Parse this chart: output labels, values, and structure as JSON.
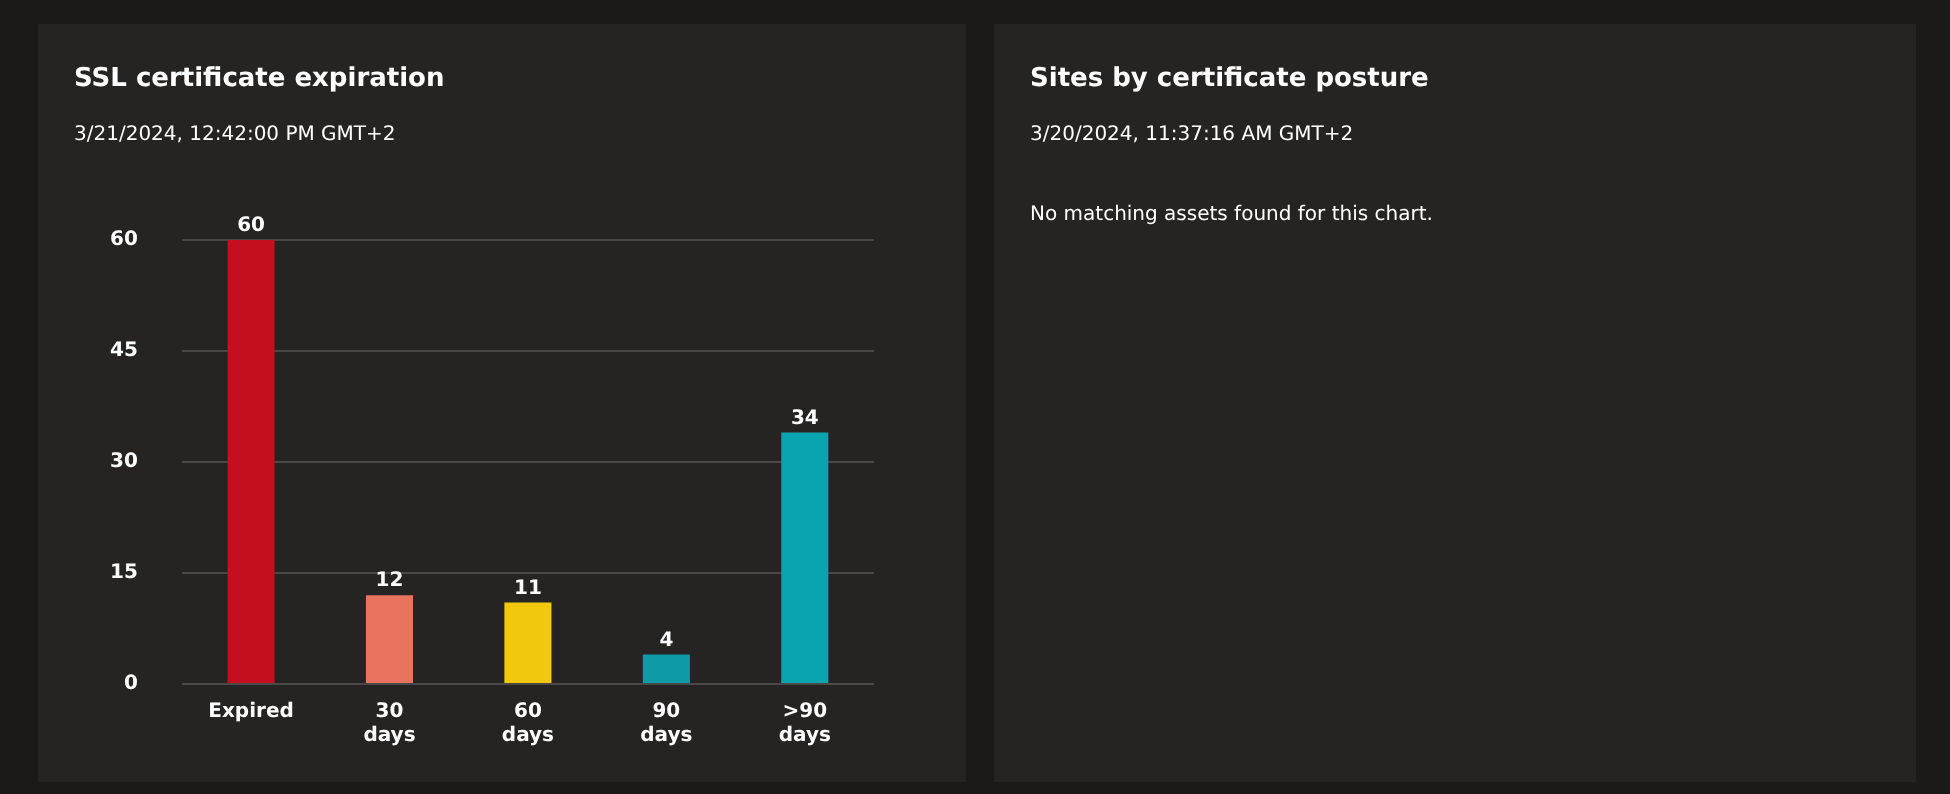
{
  "chart_data": [
    {
      "type": "bar",
      "title": "SSL certificate expiration",
      "subtitle": "3/21/2024, 12:42:00 PM GMT+2",
      "categories": [
        "Expired",
        "30 days",
        "60 days",
        "90 days",
        ">90 days"
      ],
      "values": [
        60,
        12,
        11,
        4,
        34
      ],
      "colors": [
        "#c50f1f",
        "#e8735f",
        "#f2c80f",
        "#0e9aa7",
        "#0aa3b0"
      ],
      "ylim": [
        0,
        60
      ],
      "yticks": [
        0,
        15,
        30,
        45,
        60
      ],
      "grid": "y",
      "data_labels": true,
      "legend": false
    },
    {
      "type": "other",
      "title": "Sites by certificate posture",
      "subtitle": "3/20/2024, 11:37:16 AM GMT+2",
      "annotations": [
        "No matching assets found for this chart."
      ]
    }
  ]
}
